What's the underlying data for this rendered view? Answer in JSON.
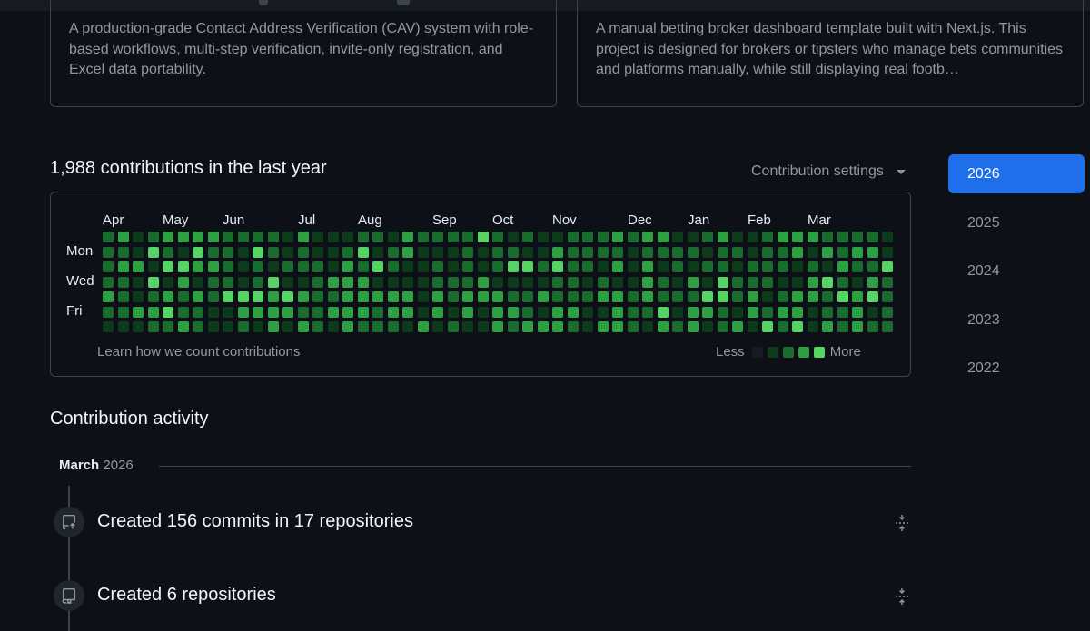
{
  "repo_cards": [
    {
      "description": "A production-grade Contact Address Verification (CAV) system with role-based workflows, multi-step verification, invite-only registration, and Excel data portability."
    },
    {
      "description": "A manual betting broker dashboard template built with Next.js. This project is designed for brokers or tipsters who manage bets communities and platforms manually, while still displaying real footb…"
    }
  ],
  "contributions": {
    "title": "1,988 contributions in the last year",
    "settings_label": "Contribution settings",
    "months": [
      "Apr",
      "May",
      "Jun",
      "Jul",
      "Aug",
      "Sep",
      "Oct",
      "Nov",
      "Dec",
      "Jan",
      "Feb",
      "Mar"
    ],
    "day_labels": [
      "Mon",
      "Wed",
      "Fri"
    ],
    "learn_link": "Learn how we count contributions",
    "legend_less": "Less",
    "legend_more": "More",
    "level_colors": [
      "#161b22",
      "#0e3a1c",
      "#196c2e",
      "#2ea043",
      "#56d364"
    ],
    "weeks": 53,
    "cells": [
      "23123333222213111221322224212112223233112311233322221",
      "22142142214212112412311121221132222122221221223132331",
      "23314433212122213242112121244242213131212212221213224",
      "22141312212411233311112223111122121132131422211342132",
      "32123232444343223333313233322322233232224423123324342",
      "22334221133332233323313131332133113224133213233122312",
      "11122321121313213222131211323332133213231231424132322"
    ]
  },
  "years": [
    "2026",
    "2025",
    "2024",
    "2023",
    "2022"
  ],
  "selected_year": "2026",
  "activity": {
    "title": "Contribution activity",
    "month": "March",
    "year": "2026",
    "items": [
      {
        "text": "Created 156 commits in 17 repositories",
        "icon": "repo-push-icon"
      },
      {
        "text": "Created 6 repositories",
        "icon": "repo-icon"
      }
    ]
  }
}
